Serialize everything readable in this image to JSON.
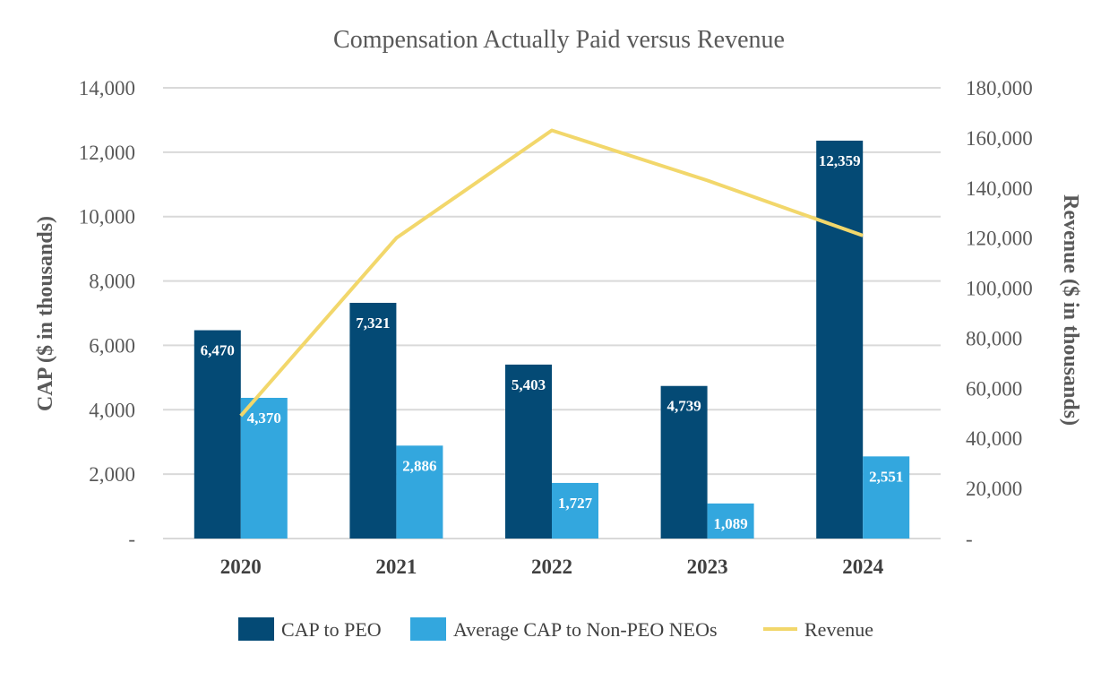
{
  "chart_data": {
    "type": "bar",
    "title": "Compensation Actually Paid versus Revenue",
    "categories": [
      "2020",
      "2021",
      "2022",
      "2023",
      "2024"
    ],
    "ylabel": "CAP ($ in thousands)",
    "y2label": "Revenue ($ in thousands)",
    "ylim": [
      0,
      14000
    ],
    "y2lim": [
      0,
      180000
    ],
    "yticks": [
      0,
      2000,
      4000,
      6000,
      8000,
      10000,
      12000,
      14000
    ],
    "ytick_labels": [
      "-",
      "2,000",
      "4,000",
      "6,000",
      "8,000",
      "10,000",
      "12,000",
      "14,000"
    ],
    "y2ticks": [
      0,
      20000,
      40000,
      60000,
      80000,
      100000,
      120000,
      140000,
      160000,
      180000
    ],
    "y2tick_labels": [
      "-",
      "20,000",
      "40,000",
      "60,000",
      "80,000",
      "100,000",
      "120,000",
      "140,000",
      "160,000",
      "180,000"
    ],
    "grid": true,
    "legend_position": "bottom",
    "series": [
      {
        "name": "CAP to PEO",
        "kind": "bar",
        "axis": "left",
        "color": "#044A75",
        "values": [
          6470,
          7321,
          5403,
          4739,
          12359
        ],
        "labels": [
          "6,470",
          "7,321",
          "5,403",
          "4,739",
          "12,359"
        ]
      },
      {
        "name": "Average CAP to Non-PEO NEOs",
        "kind": "bar",
        "axis": "left",
        "color": "#33A7DE",
        "values": [
          4370,
          2886,
          1727,
          1089,
          2551
        ],
        "labels": [
          "4,370",
          "2,886",
          "1,727",
          "1,089",
          "2,551"
        ]
      },
      {
        "name": "Revenue",
        "kind": "line",
        "axis": "right",
        "color": "#F2D76B",
        "values": [
          49000,
          120000,
          163000,
          143000,
          121000
        ]
      }
    ]
  }
}
